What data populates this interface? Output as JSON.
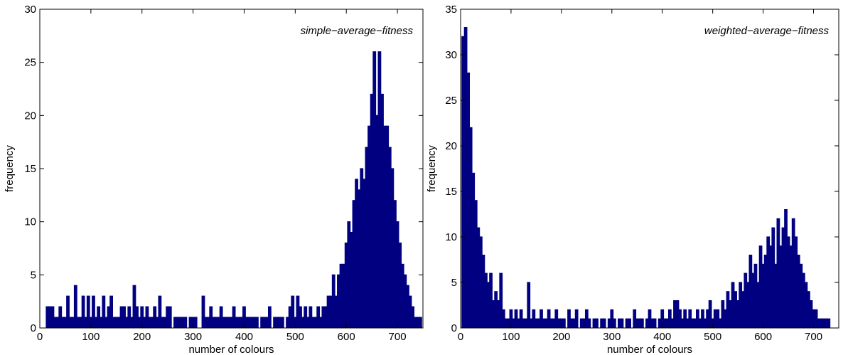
{
  "chart_data": [
    {
      "type": "bar",
      "annotation": "simple−average−fitness",
      "xlabel": "number of colours",
      "ylabel": "frequency",
      "xlim": [
        0,
        750
      ],
      "ylim": [
        0,
        30
      ],
      "xticks": [
        0,
        100,
        200,
        300,
        400,
        500,
        600,
        700
      ],
      "yticks": [
        0,
        5,
        10,
        15,
        20,
        25,
        30
      ],
      "grid": false,
      "bar_color": "#000080",
      "bins": [
        [
          5,
          0
        ],
        [
          10,
          0
        ],
        [
          15,
          2
        ],
        [
          20,
          2
        ],
        [
          25,
          2
        ],
        [
          30,
          1
        ],
        [
          35,
          1
        ],
        [
          40,
          2
        ],
        [
          45,
          1
        ],
        [
          50,
          1
        ],
        [
          55,
          3
        ],
        [
          60,
          1
        ],
        [
          65,
          1
        ],
        [
          70,
          4
        ],
        [
          75,
          1
        ],
        [
          80,
          1
        ],
        [
          85,
          3
        ],
        [
          90,
          1
        ],
        [
          95,
          3
        ],
        [
          100,
          1
        ],
        [
          105,
          3
        ],
        [
          110,
          1
        ],
        [
          115,
          2
        ],
        [
          120,
          1
        ],
        [
          125,
          3
        ],
        [
          130,
          1
        ],
        [
          135,
          2
        ],
        [
          140,
          3
        ],
        [
          145,
          1
        ],
        [
          150,
          1
        ],
        [
          155,
          1
        ],
        [
          160,
          2
        ],
        [
          165,
          2
        ],
        [
          170,
          1
        ],
        [
          175,
          2
        ],
        [
          180,
          1
        ],
        [
          185,
          4
        ],
        [
          190,
          2
        ],
        [
          195,
          1
        ],
        [
          200,
          2
        ],
        [
          205,
          1
        ],
        [
          210,
          2
        ],
        [
          215,
          1
        ],
        [
          220,
          1
        ],
        [
          225,
          2
        ],
        [
          230,
          1
        ],
        [
          235,
          3
        ],
        [
          240,
          1
        ],
        [
          245,
          1
        ],
        [
          250,
          2
        ],
        [
          255,
          2
        ],
        [
          260,
          0
        ],
        [
          265,
          1
        ],
        [
          270,
          1
        ],
        [
          275,
          1
        ],
        [
          280,
          1
        ],
        [
          285,
          1
        ],
        [
          290,
          0
        ],
        [
          295,
          1
        ],
        [
          300,
          1
        ],
        [
          305,
          1
        ],
        [
          310,
          0
        ],
        [
          315,
          0
        ],
        [
          320,
          3
        ],
        [
          325,
          1
        ],
        [
          330,
          1
        ],
        [
          335,
          2
        ],
        [
          340,
          1
        ],
        [
          345,
          1
        ],
        [
          350,
          1
        ],
        [
          355,
          2
        ],
        [
          360,
          1
        ],
        [
          365,
          1
        ],
        [
          370,
          1
        ],
        [
          375,
          1
        ],
        [
          380,
          2
        ],
        [
          385,
          1
        ],
        [
          390,
          1
        ],
        [
          395,
          1
        ],
        [
          400,
          2
        ],
        [
          405,
          1
        ],
        [
          410,
          1
        ],
        [
          415,
          1
        ],
        [
          420,
          1
        ],
        [
          425,
          1
        ],
        [
          430,
          0
        ],
        [
          435,
          1
        ],
        [
          440,
          1
        ],
        [
          445,
          1
        ],
        [
          450,
          2
        ],
        [
          455,
          0
        ],
        [
          460,
          1
        ],
        [
          465,
          1
        ],
        [
          470,
          1
        ],
        [
          475,
          1
        ],
        [
          480,
          0
        ],
        [
          485,
          1
        ],
        [
          490,
          2
        ],
        [
          495,
          3
        ],
        [
          500,
          1
        ],
        [
          505,
          3
        ],
        [
          510,
          2
        ],
        [
          515,
          1
        ],
        [
          520,
          2
        ],
        [
          525,
          1
        ],
        [
          530,
          2
        ],
        [
          535,
          1
        ],
        [
          540,
          1
        ],
        [
          545,
          2
        ],
        [
          550,
          1
        ],
        [
          555,
          2
        ],
        [
          560,
          2
        ],
        [
          565,
          3
        ],
        [
          570,
          3
        ],
        [
          575,
          5
        ],
        [
          580,
          3
        ],
        [
          585,
          5
        ],
        [
          590,
          6
        ],
        [
          595,
          6
        ],
        [
          600,
          8
        ],
        [
          605,
          10
        ],
        [
          610,
          9
        ],
        [
          615,
          12
        ],
        [
          620,
          14
        ],
        [
          625,
          13
        ],
        [
          630,
          15
        ],
        [
          635,
          14
        ],
        [
          640,
          17
        ],
        [
          645,
          19
        ],
        [
          650,
          22
        ],
        [
          655,
          26
        ],
        [
          660,
          20
        ],
        [
          665,
          26
        ],
        [
          670,
          22
        ],
        [
          675,
          19
        ],
        [
          680,
          19
        ],
        [
          685,
          17
        ],
        [
          690,
          15
        ],
        [
          695,
          12
        ],
        [
          700,
          10
        ],
        [
          705,
          8
        ],
        [
          710,
          6
        ],
        [
          715,
          5
        ],
        [
          720,
          4
        ],
        [
          725,
          3
        ],
        [
          730,
          2
        ],
        [
          735,
          1
        ],
        [
          740,
          1
        ],
        [
          745,
          1
        ]
      ]
    },
    {
      "type": "bar",
      "annotation": "weighted−average−fitness",
      "xlabel": "number of colours",
      "ylabel": "frequency",
      "xlim": [
        0,
        750
      ],
      "ylim": [
        0,
        35
      ],
      "xticks": [
        0,
        100,
        200,
        300,
        400,
        500,
        600,
        700
      ],
      "yticks": [
        0,
        5,
        10,
        15,
        20,
        25,
        30,
        35
      ],
      "grid": false,
      "bar_color": "#000080",
      "bins": [
        [
          5,
          32
        ],
        [
          10,
          33
        ],
        [
          15,
          28
        ],
        [
          20,
          22
        ],
        [
          25,
          17
        ],
        [
          30,
          14
        ],
        [
          35,
          11
        ],
        [
          40,
          10
        ],
        [
          45,
          8
        ],
        [
          50,
          6
        ],
        [
          55,
          5
        ],
        [
          60,
          6
        ],
        [
          65,
          3
        ],
        [
          70,
          4
        ],
        [
          75,
          3
        ],
        [
          80,
          6
        ],
        [
          85,
          2
        ],
        [
          90,
          1
        ],
        [
          95,
          1
        ],
        [
          100,
          2
        ],
        [
          105,
          1
        ],
        [
          110,
          2
        ],
        [
          115,
          1
        ],
        [
          120,
          2
        ],
        [
          125,
          1
        ],
        [
          130,
          1
        ],
        [
          135,
          5
        ],
        [
          140,
          1
        ],
        [
          145,
          2
        ],
        [
          150,
          1
        ],
        [
          155,
          1
        ],
        [
          160,
          2
        ],
        [
          165,
          1
        ],
        [
          170,
          1
        ],
        [
          175,
          2
        ],
        [
          180,
          1
        ],
        [
          185,
          1
        ],
        [
          190,
          2
        ],
        [
          195,
          1
        ],
        [
          200,
          1
        ],
        [
          205,
          1
        ],
        [
          210,
          0
        ],
        [
          215,
          2
        ],
        [
          220,
          1
        ],
        [
          225,
          1
        ],
        [
          230,
          2
        ],
        [
          235,
          0
        ],
        [
          240,
          1
        ],
        [
          245,
          1
        ],
        [
          250,
          2
        ],
        [
          255,
          1
        ],
        [
          260,
          0
        ],
        [
          265,
          1
        ],
        [
          270,
          1
        ],
        [
          275,
          0
        ],
        [
          280,
          1
        ],
        [
          285,
          1
        ],
        [
          290,
          0
        ],
        [
          295,
          1
        ],
        [
          300,
          2
        ],
        [
          305,
          1
        ],
        [
          310,
          0
        ],
        [
          315,
          1
        ],
        [
          320,
          1
        ],
        [
          325,
          0
        ],
        [
          330,
          1
        ],
        [
          335,
          1
        ],
        [
          340,
          0
        ],
        [
          345,
          2
        ],
        [
          350,
          1
        ],
        [
          355,
          1
        ],
        [
          360,
          1
        ],
        [
          365,
          0
        ],
        [
          370,
          1
        ],
        [
          375,
          2
        ],
        [
          380,
          1
        ],
        [
          385,
          1
        ],
        [
          390,
          0
        ],
        [
          395,
          1
        ],
        [
          400,
          2
        ],
        [
          405,
          1
        ],
        [
          410,
          1
        ],
        [
          415,
          2
        ],
        [
          420,
          1
        ],
        [
          425,
          3
        ],
        [
          430,
          3
        ],
        [
          435,
          2
        ],
        [
          440,
          1
        ],
        [
          445,
          2
        ],
        [
          450,
          1
        ],
        [
          455,
          2
        ],
        [
          460,
          1
        ],
        [
          465,
          1
        ],
        [
          470,
          2
        ],
        [
          475,
          1
        ],
        [
          480,
          2
        ],
        [
          485,
          1
        ],
        [
          490,
          2
        ],
        [
          495,
          3
        ],
        [
          500,
          1
        ],
        [
          505,
          2
        ],
        [
          510,
          2
        ],
        [
          515,
          1
        ],
        [
          520,
          3
        ],
        [
          525,
          2
        ],
        [
          530,
          4
        ],
        [
          535,
          3
        ],
        [
          540,
          5
        ],
        [
          545,
          4
        ],
        [
          550,
          3
        ],
        [
          555,
          5
        ],
        [
          560,
          4
        ],
        [
          565,
          6
        ],
        [
          570,
          5
        ],
        [
          575,
          8
        ],
        [
          580,
          6
        ],
        [
          585,
          7
        ],
        [
          590,
          5
        ],
        [
          595,
          9
        ],
        [
          600,
          7
        ],
        [
          605,
          8
        ],
        [
          610,
          10
        ],
        [
          615,
          9
        ],
        [
          620,
          11
        ],
        [
          625,
          7
        ],
        [
          630,
          12
        ],
        [
          635,
          9
        ],
        [
          640,
          11
        ],
        [
          645,
          13
        ],
        [
          650,
          10
        ],
        [
          655,
          9
        ],
        [
          660,
          12
        ],
        [
          665,
          10
        ],
        [
          670,
          8
        ],
        [
          675,
          7
        ],
        [
          680,
          6
        ],
        [
          685,
          5
        ],
        [
          690,
          4
        ],
        [
          695,
          3
        ],
        [
          700,
          2
        ],
        [
          705,
          2
        ],
        [
          710,
          1
        ],
        [
          715,
          1
        ],
        [
          720,
          1
        ],
        [
          725,
          1
        ],
        [
          730,
          1
        ],
        [
          735,
          0
        ],
        [
          740,
          0
        ],
        [
          745,
          0
        ]
      ]
    }
  ]
}
